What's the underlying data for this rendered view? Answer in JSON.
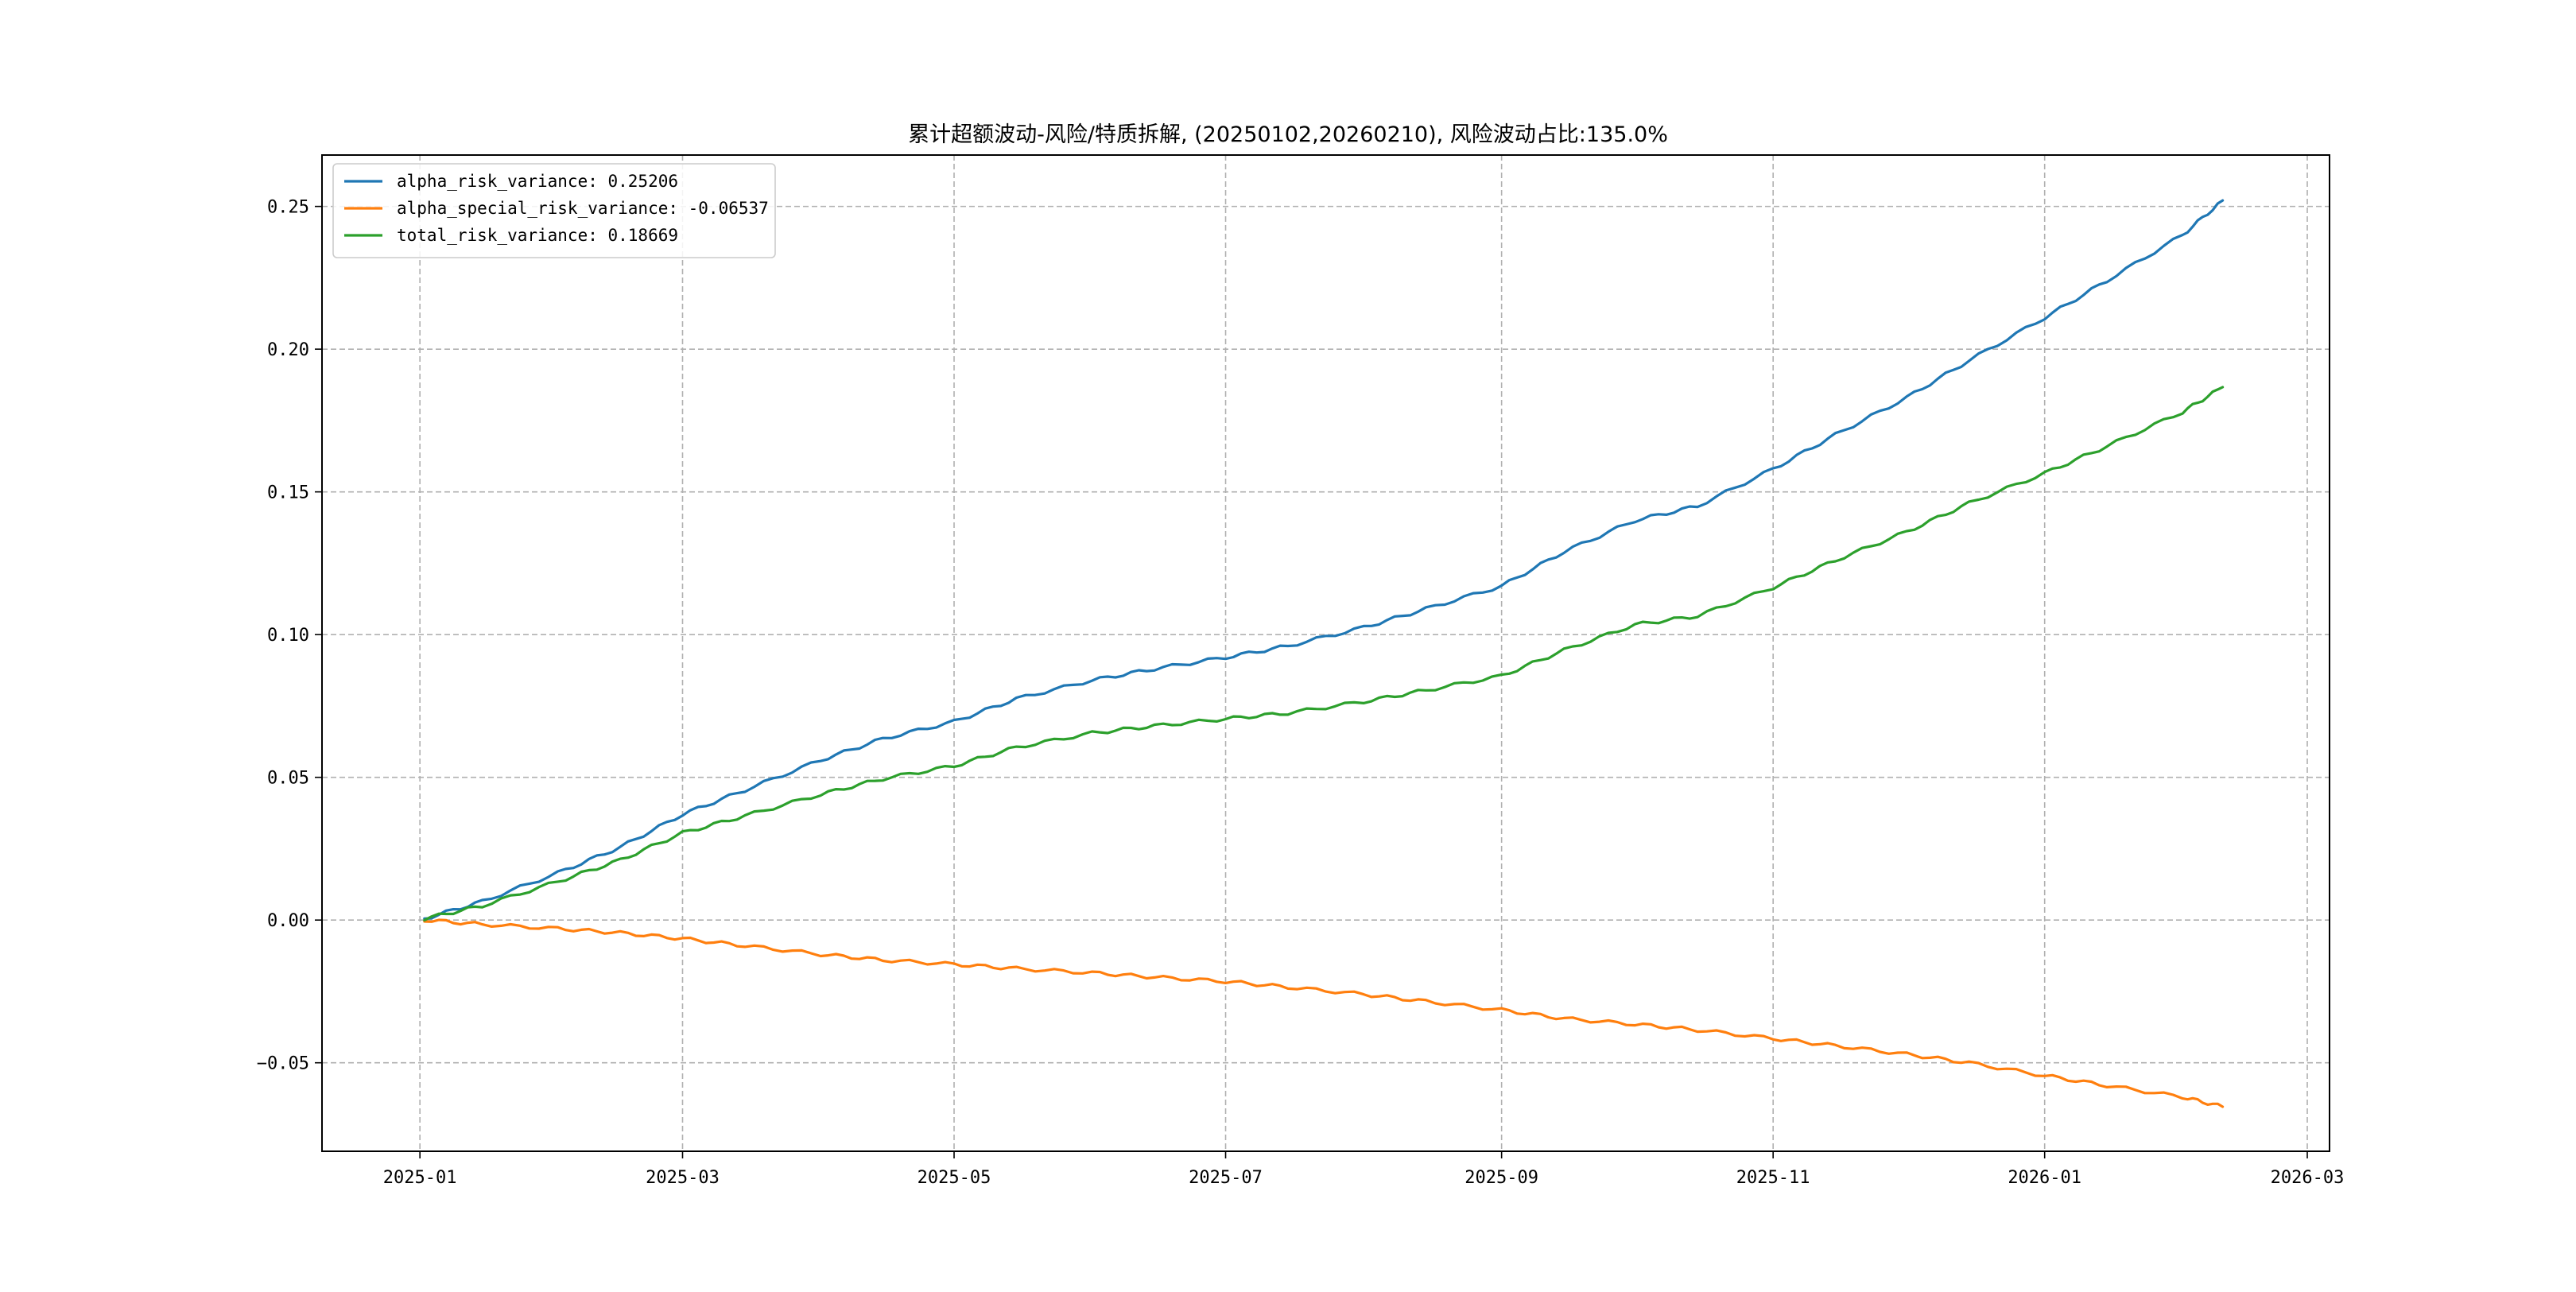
{
  "chart_data": {
    "type": "line",
    "title": "累计超额波动-风险/特质拆解, (20250102,20260210), 风险波动占比:135.0%",
    "xlabel": "",
    "ylabel": "",
    "x_ticks": [
      "2025-01",
      "2025-03",
      "2025-05",
      "2025-07",
      "2025-09",
      "2025-11",
      "2026-01",
      "2026-03"
    ],
    "x_tick_dates": [
      "2025-01-01",
      "2025-03-01",
      "2025-05-01",
      "2025-07-01",
      "2025-09-01",
      "2025-11-01",
      "2026-01-01",
      "2026-03-01"
    ],
    "xlim": [
      "2024-12-10",
      "2026-03-06"
    ],
    "y_ticks": [
      "−0.05",
      "0.00",
      "0.05",
      "0.10",
      "0.15",
      "0.20",
      "0.25"
    ],
    "y_tick_values": [
      -0.05,
      0.0,
      0.05,
      0.1,
      0.15,
      0.2,
      0.25
    ],
    "ylim": [
      -0.081,
      0.268
    ],
    "grid": true,
    "legend_position": "top-left",
    "x": [
      "2025-01-02",
      "2025-01-15",
      "2025-02-01",
      "2025-02-15",
      "2025-03-01",
      "2025-03-15",
      "2025-04-01",
      "2025-04-15",
      "2025-05-01",
      "2025-05-15",
      "2025-06-01",
      "2025-06-15",
      "2025-07-01",
      "2025-07-15",
      "2025-08-01",
      "2025-08-15",
      "2025-09-01",
      "2025-09-15",
      "2025-10-01",
      "2025-10-15",
      "2025-11-01",
      "2025-11-15",
      "2025-12-01",
      "2025-12-15",
      "2026-01-01",
      "2026-01-15",
      "2026-02-01",
      "2026-02-10"
    ],
    "series": [
      {
        "name": "alpha_risk_variance: 0.25206",
        "color": "#1f77b4",
        "values": [
          0.0005,
          0.0065,
          0.0165,
          0.0255,
          0.037,
          0.0455,
          0.056,
          0.0635,
          0.0695,
          0.0775,
          0.084,
          0.088,
          0.092,
          0.096,
          0.1025,
          0.109,
          0.117,
          0.129,
          0.14,
          0.145,
          0.158,
          0.17,
          0.183,
          0.196,
          0.211,
          0.224,
          0.24,
          0.2521
        ]
      },
      {
        "name": "alpha_special_risk_variance: -0.06537",
        "color": "#ff7f0e",
        "values": [
          0.0,
          -0.0015,
          -0.003,
          -0.0045,
          -0.0065,
          -0.009,
          -0.012,
          -0.014,
          -0.0155,
          -0.017,
          -0.0185,
          -0.02,
          -0.0215,
          -0.0235,
          -0.026,
          -0.0285,
          -0.0315,
          -0.0345,
          -0.0365,
          -0.0385,
          -0.0415,
          -0.044,
          -0.047,
          -0.05,
          -0.0545,
          -0.058,
          -0.062,
          -0.0654
        ]
      },
      {
        "name": "total_risk_variance: 0.18669",
        "color": "#2ca02c",
        "values": [
          0.0005,
          0.005,
          0.0135,
          0.021,
          0.0305,
          0.0365,
          0.044,
          0.0495,
          0.054,
          0.0605,
          0.0655,
          0.068,
          0.0705,
          0.0725,
          0.0765,
          0.0805,
          0.0855,
          0.0945,
          0.1035,
          0.1065,
          0.1165,
          0.126,
          0.136,
          0.146,
          0.1565,
          0.166,
          0.178,
          0.1867
        ]
      }
    ]
  }
}
